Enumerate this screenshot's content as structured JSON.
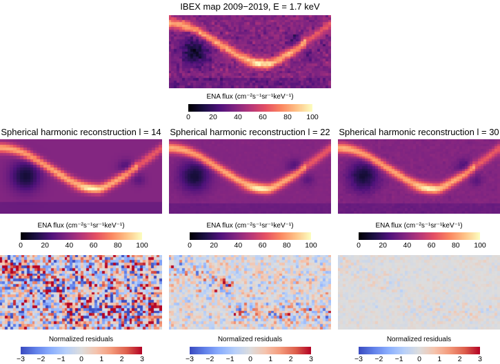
{
  "main_title": "IBEX map 2009−2019, E = 1.7 keV",
  "recon_titles": [
    "Spherical harmonic reconstruction l = 14",
    "Spherical harmonic reconstruction l = 22",
    "Spherical harmonic reconstruction l = 30"
  ],
  "flux_label": "ENA flux (cm⁻²s⁻¹sr⁻¹keV⁻¹)",
  "residual_label": "Normalized residuals",
  "chart_data": [
    {
      "type": "heatmap",
      "title": "IBEX map 2009−2019, E = 1.7 keV",
      "colorbar_label": "ENA flux (cm⁻²s⁻¹sr⁻¹keV⁻¹)",
      "colorbar_ticks": [
        "0",
        "20",
        "40",
        "60",
        "80",
        "100"
      ],
      "range": [
        0,
        100
      ],
      "colormap": "magma"
    },
    {
      "type": "heatmap",
      "title": "Spherical harmonic reconstruction l = 14",
      "colorbar_ticks": [
        "0",
        "20",
        "40",
        "60",
        "80",
        "100"
      ],
      "range": [
        0,
        100
      ],
      "lmax": 14
    },
    {
      "type": "heatmap",
      "title": "Spherical harmonic reconstruction l = 22",
      "colorbar_ticks": [
        "0",
        "20",
        "40",
        "60",
        "80",
        "100"
      ],
      "range": [
        0,
        100
      ],
      "lmax": 22
    },
    {
      "type": "heatmap",
      "title": "Spherical harmonic reconstruction l = 30",
      "colorbar_ticks": [
        "0",
        "20",
        "40",
        "60",
        "80",
        "100"
      ],
      "range": [
        0,
        100
      ],
      "lmax": 30
    },
    {
      "type": "heatmap",
      "title": "Normalized residuals",
      "colorbar_ticks": [
        "−3",
        "−2",
        "−1",
        "0",
        "1",
        "2",
        "3"
      ],
      "range": [
        -3,
        3
      ],
      "colormap": "coolwarm",
      "residual_amplitude": [
        1.6,
        0.6,
        0.15
      ]
    }
  ]
}
